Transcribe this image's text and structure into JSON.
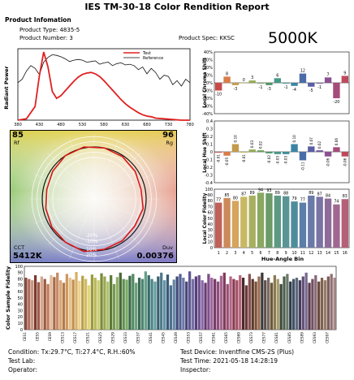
{
  "report": {
    "title": "IES TM-30-18 Color Rendition Report",
    "section_label": "Product Infomation",
    "product_type": "Product Type: 4835-5",
    "product_number": "Product Number: 3",
    "product_spec": "Product Spec: KKSC",
    "cct_headline": "5000K"
  },
  "footer": {
    "condition": "Condition: Tx:29.7°C, Ti:27.4°C, R.H.:60%",
    "test_lab": "Test Lab:",
    "operator": "Operator:",
    "test_device": "Test Device: Inventfine CMS-2S (Plus)",
    "test_time": "Test Time: 2021-05-18 14:28:19",
    "inspector": "Inspector:"
  },
  "colors": {
    "test": "#e02020",
    "reference": "#111111"
  },
  "chart_data": [
    {
      "type": "line",
      "ylabel": "Radiant Power",
      "x_ticks": [
        380,
        430,
        480,
        530,
        580,
        630,
        680,
        730,
        780
      ],
      "xlim": [
        380,
        780
      ],
      "ylim": [
        0,
        1
      ],
      "legend": [
        "Test",
        "Reference"
      ],
      "legend_position": "top-right",
      "series": [
        {
          "name": "Test",
          "x": [
            380,
            400,
            420,
            430,
            440,
            450,
            460,
            470,
            480,
            490,
            500,
            510,
            520,
            530,
            540,
            550,
            560,
            570,
            580,
            590,
            600,
            610,
            620,
            630,
            640,
            650,
            660,
            670,
            680,
            690,
            700,
            720,
            740,
            760,
            780
          ],
          "values": [
            0.0,
            0.02,
            0.2,
            0.65,
            1.0,
            0.78,
            0.42,
            0.32,
            0.36,
            0.43,
            0.5,
            0.57,
            0.63,
            0.67,
            0.69,
            0.7,
            0.68,
            0.64,
            0.58,
            0.51,
            0.44,
            0.37,
            0.3,
            0.24,
            0.19,
            0.15,
            0.11,
            0.08,
            0.06,
            0.05,
            0.03,
            0.02,
            0.01,
            0.0,
            0.0
          ]
        },
        {
          "name": "Reference",
          "x": [
            380,
            390,
            400,
            410,
            420,
            430,
            440,
            450,
            460,
            470,
            480,
            490,
            500,
            510,
            520,
            530,
            540,
            550,
            560,
            570,
            580,
            590,
            600,
            610,
            620,
            630,
            640,
            650,
            660,
            670,
            680,
            690,
            700,
            710,
            720,
            730,
            740,
            750,
            760,
            770,
            780
          ],
          "values": [
            0.55,
            0.6,
            0.72,
            0.8,
            0.76,
            0.67,
            0.85,
            0.92,
            0.96,
            0.95,
            0.93,
            0.9,
            0.86,
            0.88,
            0.89,
            0.88,
            0.85,
            0.86,
            0.87,
            0.82,
            0.84,
            0.85,
            0.8,
            0.83,
            0.84,
            0.81,
            0.82,
            0.8,
            0.74,
            0.78,
            0.68,
            0.76,
            0.7,
            0.6,
            0.66,
            0.64,
            0.52,
            0.58,
            0.5,
            0.6,
            0.55
          ]
        }
      ]
    },
    {
      "type": "bar",
      "ylabel": "Local Chroma Shift",
      "y_ticks": [
        "40%",
        "30%",
        "20%",
        "10%",
        "0%",
        "-10%",
        "-20%",
        "-30%",
        "-40%"
      ],
      "ylim": [
        -40,
        40
      ],
      "categories": [
        1,
        2,
        3,
        4,
        5,
        6,
        7,
        8,
        9,
        10,
        11,
        12,
        13,
        14,
        15,
        16
      ],
      "values": [
        -10,
        8,
        -3,
        0,
        3,
        -1,
        -3,
        6,
        -1,
        -4,
        12,
        -5,
        -1,
        7,
        -20,
        9
      ],
      "labels": [
        "-10",
        "8",
        "-3",
        "0",
        "3",
        "-1",
        "-3",
        "6",
        "-1",
        "-4",
        "12",
        "-5",
        "-1",
        "7",
        "-20",
        "9"
      ]
    },
    {
      "type": "bar",
      "ylabel": "Local Hue Shift",
      "y_ticks": [
        "0.4",
        "0.3",
        "0.2",
        "0.1",
        "0",
        "-0.1",
        "-0.2",
        "-0.3",
        "-0.4"
      ],
      "ylim": [
        -0.4,
        0.4
      ],
      "categories": [
        1,
        2,
        3,
        4,
        5,
        6,
        7,
        8,
        9,
        10,
        11,
        12,
        13,
        14,
        15,
        16
      ],
      "values": [
        -0.01,
        -0.05,
        0.1,
        -0.01,
        0.03,
        0.02,
        -0.02,
        -0.03,
        -0.03,
        0.1,
        -0.11,
        0.07,
        0.02,
        -0.06,
        0.06,
        -0.06
      ],
      "labels": [
        "-0.01",
        "-0.05",
        "0.10",
        "-0.01",
        "0.03",
        "0.02",
        "-0.02",
        "-0.03",
        "-0.03",
        "0.10",
        "-0.11",
        "0.07",
        "0.02",
        "-0.06",
        "0.06",
        "-0.06"
      ]
    },
    {
      "type": "bar",
      "ylabel": "Local Color Fidelity",
      "xlabel": "Hue-Angle Bin",
      "y_ticks": [
        "100",
        "90",
        "80",
        "70",
        "60",
        "50",
        "40",
        "30",
        "20",
        "10",
        "0"
      ],
      "ylim": [
        0,
        100
      ],
      "categories": [
        1,
        2,
        3,
        4,
        5,
        6,
        7,
        8,
        9,
        10,
        11,
        12,
        13,
        14,
        15,
        16
      ],
      "values": [
        77,
        85,
        80,
        87,
        89,
        94,
        93,
        89,
        88,
        79,
        77,
        89,
        87,
        84,
        74,
        83
      ],
      "colors": [
        "#c06058",
        "#cc8a5a",
        "#d6a45c",
        "#c8b865",
        "#a8b060",
        "#8aa860",
        "#6c9a68",
        "#5c9a84",
        "#5a9494",
        "#4e8c9c",
        "#5c7ea8",
        "#6a7aa8",
        "#7a74a4",
        "#8e6c9a",
        "#a06890",
        "#b46078"
      ]
    },
    {
      "type": "vector-graphic",
      "rf": "85",
      "rf_label": "Rf",
      "rg": "96",
      "rg_label": "Rg",
      "cct_label": "CCT",
      "cct_value": "5412K",
      "duv_label": "Duv",
      "duv_value": "0.00376",
      "ring_labels": [
        "-20%",
        "-10%",
        "10%",
        "20%"
      ],
      "test_radii": [
        0.92,
        0.95,
        0.98,
        1.0,
        1.02,
        1.0,
        0.96,
        0.93,
        0.95,
        0.98,
        1.0,
        1.03,
        0.99,
        0.97,
        0.94,
        0.96
      ]
    },
    {
      "type": "bar",
      "ylabel": "Color Sample Fidelity",
      "y_ticks": [
        "100",
        "90",
        "80",
        "70",
        "60",
        "50",
        "40",
        "30",
        "20",
        "10",
        "0"
      ],
      "ylim": [
        0,
        100
      ],
      "tick_labels": [
        "CES1",
        "CES5",
        "CES9",
        "CES13",
        "CES17",
        "CES21",
        "CES25",
        "CES29",
        "CES33",
        "CES37",
        "CES41",
        "CES45",
        "CES49",
        "CES53",
        "CES57",
        "CES61",
        "CES65",
        "CES69",
        "CES73",
        "CES77",
        "CES81",
        "CES85",
        "CES89",
        "CES93",
        "CES97"
      ],
      "values": [
        82,
        80,
        78,
        86,
        75,
        84,
        80,
        72,
        86,
        83,
        90,
        78,
        74,
        88,
        82,
        79,
        91,
        77,
        85,
        80,
        70,
        87,
        82,
        78,
        89,
        84,
        76,
        86,
        72,
        83,
        90,
        80,
        79,
        85,
        88,
        74,
        82,
        80,
        92,
        86,
        80,
        76,
        84,
        90,
        78,
        87,
        70,
        79,
        84,
        88,
        82,
        76,
        92,
        80,
        84,
        86,
        78,
        74,
        88,
        82,
        80,
        76,
        85,
        90,
        72,
        84,
        80,
        78,
        86,
        82,
        70,
        88,
        80,
        76,
        84,
        90,
        78,
        82,
        74,
        86,
        80,
        72,
        84,
        88,
        76,
        80,
        82,
        78,
        84,
        90,
        74,
        80,
        86,
        76,
        82,
        78,
        84,
        88,
        82
      ],
      "colors": [
        "#8a4a3e",
        "#b06a5a",
        "#c8967e",
        "#7a3a30",
        "#a05a48",
        "#d4a890",
        "#9a5a40",
        "#c07a5a",
        "#e0b898",
        "#a86a48",
        "#c88a62",
        "#d8a878",
        "#b07c4a",
        "#d09860",
        "#e8c08a",
        "#c09050",
        "#d8b068",
        "#ecd090",
        "#b8a048",
        "#d0bc60",
        "#e4d480",
        "#9a9a40",
        "#b8b858",
        "#cccc70",
        "#7a8a38",
        "#98a850",
        "#b0c068",
        "#5a7a38",
        "#789a50",
        "#90b068",
        "#486a38",
        "#609050",
        "#78a868",
        "#3a6a48",
        "#508a60",
        "#68a078",
        "#3a6a58",
        "#4e8470",
        "#66a088",
        "#386a6a",
        "#4c8484",
        "#62a0a0",
        "#3a6070",
        "#4e7a8a",
        "#6494a4",
        "#3a5a78",
        "#4e7090",
        "#6488a8",
        "#404a78",
        "#546090",
        "#6a78a8",
        "#4a4478",
        "#5e5890",
        "#7470a8",
        "#5a3e78",
        "#6e5290",
        "#8468a8",
        "#6a3a70",
        "#824e88",
        "#9a66a0",
        "#763a64",
        "#8e4e7c",
        "#a66694",
        "#803a5a",
        "#984e70",
        "#b06688",
        "#8a3a4e",
        "#a24e64",
        "#b8667c",
        "#4a2a2a",
        "#6a3a3a",
        "#8a5050",
        "#5a3a2a",
        "#7a5038",
        "#9a6a50",
        "#3a3a3a",
        "#5a5050",
        "#7a6a60",
        "#6a5a3a",
        "#8a7a50",
        "#a89a6a",
        "#3a4a3a",
        "#506050",
        "#6a7a6a",
        "#2e3a4a",
        "#445264",
        "#5c6c80",
        "#4a3a5a",
        "#605074",
        "#786890",
        "#5a3a4a",
        "#705060",
        "#886878",
        "#6a4a3a",
        "#806050",
        "#987a68",
        "#7a5a5a",
        "#907070",
        "#a88888"
      ]
    }
  ]
}
